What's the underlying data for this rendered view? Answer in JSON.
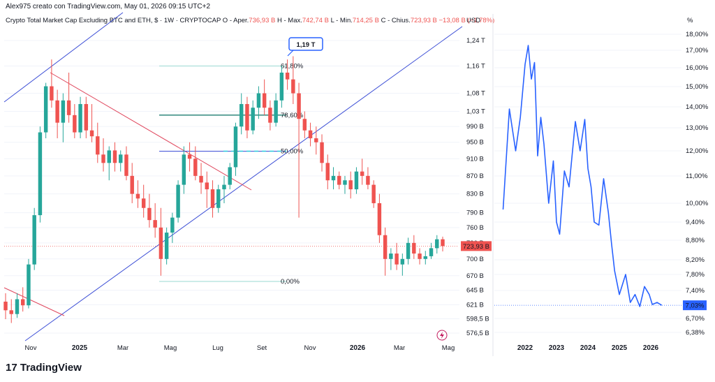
{
  "header": {
    "credit": "Alex975 creato con TradingView.com, May 01, 2026 09:15 UTC+2",
    "symbol": "Crypto Total Market Cap Excluding BTC and ETH, $ · 1W · CRYPTOCAP",
    "open_label": "O - Aper.",
    "open_value": "736,93 B",
    "high_label": "H - Max.",
    "high_value": "742,74 B",
    "low_label": "L - Min.",
    "low_value": "714,25 B",
    "close_label": "C - Chius.",
    "close_value": "723,93 B",
    "change_value": "−13,08 B (−1,78%)"
  },
  "brand": {
    "name": "TradingView"
  },
  "colors": {
    "up": "#26a69a",
    "down": "#ef5350",
    "trend_blue": "#3d4fd6",
    "trend_red": "#e0485e",
    "fib": "#26a69a",
    "line": "#2962ff"
  },
  "chart_data": [
    {
      "type": "candlestick",
      "title": "",
      "yunit": "USD",
      "y_scale": "log",
      "y_ticks": [
        "1,24 T",
        "1,16 T",
        "1,08 T",
        "1,03 T",
        "990 B",
        "950 B",
        "910 B",
        "870 B",
        "830 B",
        "790 B",
        "760 B",
        "730 B",
        "700 B",
        "670 B",
        "645 B",
        "621 B",
        "598,5 B",
        "576,5 B"
      ],
      "x_ticks": [
        "Nov",
        "2025",
        "Mar",
        "Mag",
        "Lug",
        "Set",
        "Nov",
        "2026",
        "Mar",
        "Mag"
      ],
      "last_price_label": "723,93 B",
      "annotation_peak": "1,19 T",
      "fib_levels": [
        {
          "label": "61,80%",
          "value": 1160
        },
        {
          "label": "78,60%",
          "value": 1020
        },
        {
          "label": "50,00%",
          "value": 928
        },
        {
          "label": "0,00%",
          "value": 660
        }
      ],
      "series": [
        {
          "name": "",
          "ohlc": [
            [
              626,
              640,
              598,
              612
            ],
            [
              612,
              630,
              592,
              606
            ],
            [
              606,
              640,
              600,
              630
            ],
            [
              630,
              650,
              610,
              620
            ],
            [
              620,
              700,
              615,
              690
            ],
            [
              690,
              800,
              680,
              785
            ],
            [
              785,
              990,
              770,
              975
            ],
            [
              975,
              1110,
              960,
              1100
            ],
            [
              1100,
              1180,
              1040,
              1060
            ],
            [
              1060,
              1090,
              960,
              1000
            ],
            [
              1000,
              1080,
              950,
              1060
            ],
            [
              1060,
              1140,
              1000,
              1020
            ],
            [
              1020,
              1050,
              960,
              975
            ],
            [
              975,
              1070,
              960,
              1050
            ],
            [
              1050,
              1070,
              960,
              980
            ],
            [
              980,
              1050,
              950,
              965
            ],
            [
              965,
              1000,
              900,
              920
            ],
            [
              920,
              960,
              880,
              900
            ],
            [
              900,
              940,
              860,
              930
            ],
            [
              930,
              950,
              880,
              900
            ],
            [
              900,
              930,
              880,
              920
            ],
            [
              920,
              940,
              860,
              870
            ],
            [
              870,
              900,
              810,
              830
            ],
            [
              830,
              860,
              800,
              820
            ],
            [
              820,
              850,
              780,
              800
            ],
            [
              800,
              830,
              760,
              775
            ],
            [
              775,
              810,
              740,
              760
            ],
            [
              760,
              800,
              670,
              700
            ],
            [
              700,
              760,
              690,
              750
            ],
            [
              750,
              790,
              730,
              780
            ],
            [
              780,
              860,
              770,
              850
            ],
            [
              850,
              940,
              830,
              920
            ],
            [
              920,
              950,
              880,
              910
            ],
            [
              910,
              940,
              860,
              870
            ],
            [
              870,
              900,
              830,
              855
            ],
            [
              855,
              880,
              800,
              840
            ],
            [
              840,
              860,
              780,
              800
            ],
            [
              800,
              850,
              790,
              840
            ],
            [
              840,
              870,
              810,
              850
            ],
            [
              850,
              900,
              840,
              890
            ],
            [
              890,
              1000,
              870,
              990
            ],
            [
              990,
              1080,
              970,
              1050
            ],
            [
              1050,
              1070,
              960,
              980
            ],
            [
              980,
              1060,
              970,
              1040
            ],
            [
              1040,
              1100,
              1010,
              1080
            ],
            [
              1080,
              1120,
              1020,
              1040
            ],
            [
              1040,
              1060,
              980,
              1000
            ],
            [
              1000,
              1080,
              990,
              1060
            ],
            [
              1060,
              1160,
              1040,
              1140
            ],
            [
              1140,
              1180,
              1090,
              1120
            ],
            [
              1120,
              1190,
              1050,
              1080
            ],
            [
              1080,
              1110,
              780,
              1010
            ],
            [
              1010,
              1030,
              960,
              980
            ],
            [
              980,
              1000,
              940,
              960
            ],
            [
              960,
              990,
              920,
              950
            ],
            [
              950,
              970,
              880,
              900
            ],
            [
              900,
              920,
              840,
              860
            ],
            [
              860,
              890,
              840,
              870
            ],
            [
              870,
              880,
              840,
              850
            ],
            [
              850,
              870,
              830,
              860
            ],
            [
              860,
              880,
              820,
              840
            ],
            [
              840,
              890,
              830,
              880
            ],
            [
              880,
              910,
              850,
              870
            ],
            [
              870,
              890,
              840,
              850
            ],
            [
              850,
              860,
              800,
              810
            ],
            [
              810,
              830,
              730,
              745
            ],
            [
              745,
              760,
              670,
              700
            ],
            [
              700,
              720,
              680,
              710
            ],
            [
              710,
              730,
              680,
              690
            ],
            [
              690,
              710,
              670,
              700
            ],
            [
              700,
              740,
              690,
              730
            ],
            [
              730,
              745,
              700,
              710
            ],
            [
              710,
              720,
              690,
              700
            ],
            [
              700,
              715,
              690,
              705
            ],
            [
              705,
              730,
              700,
              720
            ],
            [
              720,
              745,
              710,
              737
            ],
            [
              737,
              742,
              714,
              724
            ]
          ]
        }
      ]
    },
    {
      "type": "line",
      "title": "",
      "yunit": "%",
      "y_ticks": [
        "18,00%",
        "17,00%",
        "16,00%",
        "15,00%",
        "14,00%",
        "13,00%",
        "12,00%",
        "11,00%",
        "10,00%",
        "9,40%",
        "8,80%",
        "8,20%",
        "7,80%",
        "7,40%",
        "6,70%",
        "6,38%"
      ],
      "x_ticks": [
        "2022",
        "2023",
        "2024",
        "2025",
        "2026"
      ],
      "last_value_label": "7,03%",
      "series": [
        {
          "name": "",
          "x": [
            2021.3,
            2021.5,
            2021.7,
            2021.85,
            2022.0,
            2022.1,
            2022.2,
            2022.3,
            2022.4,
            2022.5,
            2022.6,
            2022.75,
            2022.9,
            2023.0,
            2023.1,
            2023.25,
            2023.4,
            2023.6,
            2023.75,
            2023.9,
            2024.0,
            2024.1,
            2024.2,
            2024.35,
            2024.5,
            2024.65,
            2024.75,
            2024.85,
            2025.0,
            2025.2,
            2025.35,
            2025.5,
            2025.65,
            2025.8,
            2025.95,
            2026.05,
            2026.2,
            2026.35
          ],
          "y": [
            9.8,
            13.9,
            12.0,
            13.5,
            16.2,
            17.3,
            15.4,
            16.3,
            11.8,
            13.5,
            12.3,
            10.0,
            11.6,
            9.4,
            9.0,
            11.2,
            10.6,
            13.3,
            12.0,
            13.4,
            11.3,
            10.6,
            9.4,
            9.3,
            10.9,
            9.7,
            8.7,
            7.9,
            7.3,
            7.8,
            7.1,
            7.3,
            7.0,
            7.5,
            7.3,
            7.05,
            7.1,
            7.03
          ]
        }
      ]
    }
  ]
}
